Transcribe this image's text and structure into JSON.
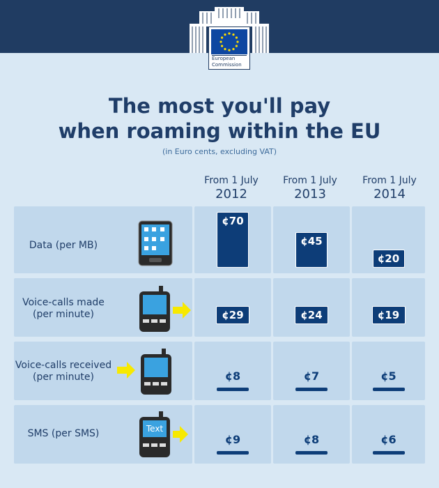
{
  "logo": {
    "line1": "European",
    "line2": "Commission"
  },
  "title_line1": "The most you'll pay",
  "title_line2": "when roaming within the EU",
  "subtitle": "(in Euro cents, excluding VAT)",
  "icons": {
    "text_phone_label": "Text"
  },
  "colors": {
    "accent": "#0d3d78",
    "arrow": "#f7e900",
    "header": "#203c62",
    "panel": "#c1d8ec"
  },
  "chart_data": {
    "type": "bar",
    "title": "The most you'll pay when roaming within the EU",
    "subtitle": "(in Euro cents, excluding VAT)",
    "columns": [
      {
        "line1": "From 1 July",
        "line2": "2012"
      },
      {
        "line1": "From 1 July",
        "line2": "2013"
      },
      {
        "line1": "From 1 July",
        "line2": "2014"
      }
    ],
    "rows": [
      {
        "label1": "Data (per MB)",
        "label2": "",
        "values": [
          70,
          45,
          20
        ],
        "labels": [
          "¢70",
          "¢45",
          "¢20"
        ]
      },
      {
        "label1": "Voice-calls made",
        "label2": "(per minute)",
        "values": [
          29,
          24,
          19
        ],
        "labels": [
          "¢29",
          "¢24",
          "¢19"
        ]
      },
      {
        "label1": "Voice-calls received",
        "label2": "(per minute)",
        "values": [
          8,
          7,
          5
        ],
        "labels": [
          "¢8",
          "¢7",
          "¢5"
        ]
      },
      {
        "label1": "SMS (per SMS)",
        "label2": "",
        "values": [
          9,
          8,
          6
        ],
        "labels": [
          "¢9",
          "¢8",
          "¢6"
        ]
      }
    ]
  }
}
